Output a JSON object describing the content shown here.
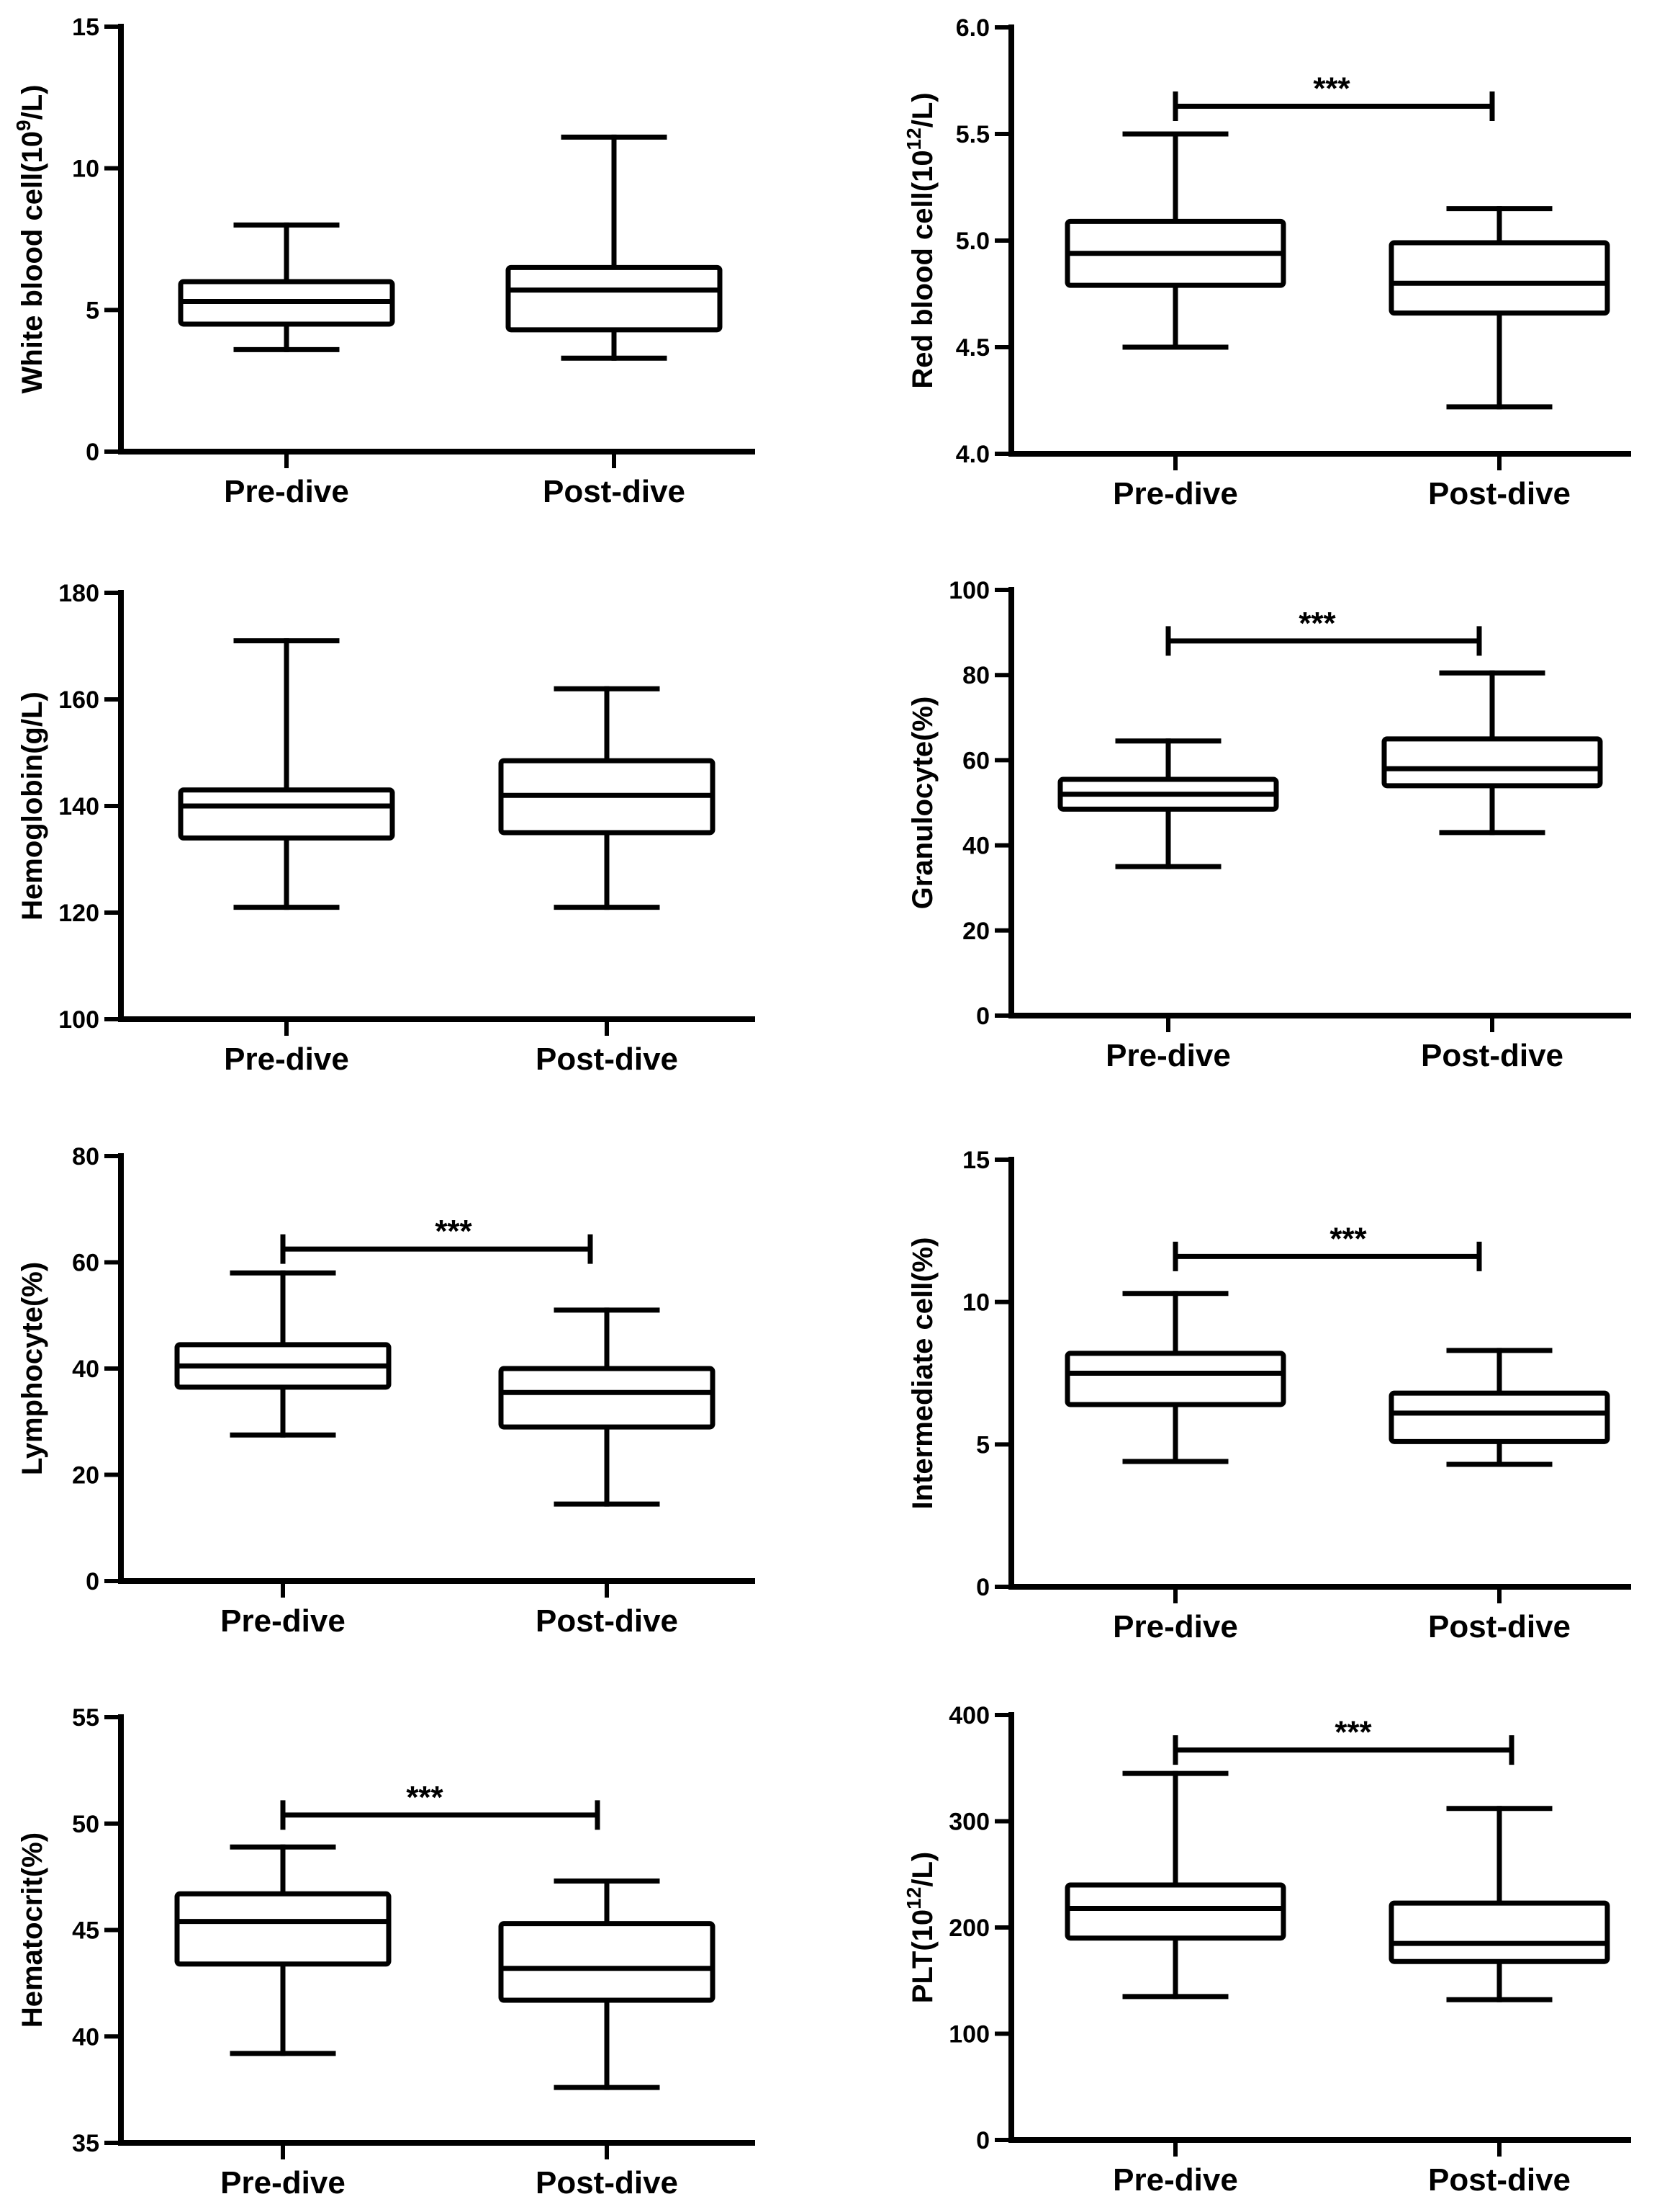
{
  "figure": {
    "description_title": ""
  },
  "chart_data": [
    {
      "type": "box",
      "ylabel": "White blood cell(10",
      "ylabel_sup": "9",
      "ylabel_tail": "/L)",
      "ylim": [
        0,
        15
      ],
      "yticks": [
        "0",
        "5",
        "10",
        "15"
      ],
      "categories": [
        "Pre-dive",
        "Post-dive"
      ],
      "boxes": [
        {
          "min": 3.6,
          "q1": 4.5,
          "median": 5.3,
          "q3": 6.0,
          "max": 8.0
        },
        {
          "min": 3.3,
          "q1": 4.3,
          "median": 5.7,
          "q3": 6.5,
          "max": 11.1
        }
      ],
      "significance": null
    },
    {
      "type": "box",
      "ylabel": "Red blood cell(10",
      "ylabel_sup": "12",
      "ylabel_tail": "/L)",
      "ylim": [
        4.0,
        6.0
      ],
      "yticks": [
        "4.0",
        "4.5",
        "5.0",
        "5.5",
        "6.0"
      ],
      "categories": [
        "Pre-dive",
        "Post-dive"
      ],
      "boxes": [
        {
          "min": 4.5,
          "q1": 4.79,
          "median": 4.94,
          "q3": 5.09,
          "max": 5.5
        },
        {
          "min": 4.22,
          "q1": 4.66,
          "median": 4.8,
          "q3": 4.99,
          "max": 5.15
        }
      ],
      "significance": {
        "label": "***",
        "y": 5.63
      }
    },
    {
      "type": "box",
      "ylabel": "Hemoglobin(g/L)",
      "ylabel_sup": "",
      "ylabel_tail": "",
      "ylim": [
        100,
        180
      ],
      "yticks": [
        "100",
        "120",
        "140",
        "160",
        "180"
      ],
      "categories": [
        "Pre-dive",
        "Post-dive"
      ],
      "boxes": [
        {
          "min": 121,
          "q1": 134,
          "median": 140,
          "q3": 143,
          "max": 171
        },
        {
          "min": 121,
          "q1": 135,
          "median": 142,
          "q3": 148.5,
          "max": 162
        }
      ],
      "significance": null
    },
    {
      "type": "box",
      "ylabel": "Granulocyte(%)",
      "ylabel_sup": "",
      "ylabel_tail": "",
      "ylim": [
        0,
        100
      ],
      "yticks": [
        "0",
        "20",
        "40",
        "60",
        "80",
        "100"
      ],
      "categories": [
        "Pre-dive",
        "Post-dive"
      ],
      "boxes": [
        {
          "min": 35,
          "q1": 48.5,
          "median": 52,
          "q3": 55.5,
          "max": 64.5
        },
        {
          "min": 43,
          "q1": 54,
          "median": 58,
          "q3": 65,
          "max": 80.5
        }
      ],
      "significance": {
        "label": "***",
        "y": 88
      }
    },
    {
      "type": "box",
      "ylabel": "Lymphocyte(%)",
      "ylabel_sup": "",
      "ylabel_tail": "",
      "ylim": [
        0,
        80
      ],
      "yticks": [
        "0",
        "20",
        "40",
        "60",
        "80"
      ],
      "categories": [
        "Pre-dive",
        "Post-dive"
      ],
      "boxes": [
        {
          "min": 27.5,
          "q1": 36.5,
          "median": 40.5,
          "q3": 44.5,
          "max": 58
        },
        {
          "min": 14.5,
          "q1": 29,
          "median": 35.5,
          "q3": 40,
          "max": 51
        }
      ],
      "significance": {
        "label": "***",
        "y": 62.5
      }
    },
    {
      "type": "box",
      "ylabel": "Intermediate cell(%)",
      "ylabel_sup": "",
      "ylabel_tail": "",
      "ylim": [
        0,
        15
      ],
      "yticks": [
        "0",
        "5",
        "10",
        "15"
      ],
      "categories": [
        "Pre-dive",
        "Post-dive"
      ],
      "boxes": [
        {
          "min": 4.4,
          "q1": 6.4,
          "median": 7.5,
          "q3": 8.2,
          "max": 10.3
        },
        {
          "min": 4.3,
          "q1": 5.1,
          "median": 6.1,
          "q3": 6.8,
          "max": 8.3
        }
      ],
      "significance": {
        "label": "***",
        "y": 11.6
      }
    },
    {
      "type": "box",
      "ylabel": "Hematocrit(%)",
      "ylabel_sup": "",
      "ylabel_tail": "",
      "ylim": [
        35,
        55
      ],
      "yticks": [
        "35",
        "40",
        "45",
        "50",
        "55"
      ],
      "categories": [
        "Pre-dive",
        "Post-dive"
      ],
      "boxes": [
        {
          "min": 39.2,
          "q1": 43.4,
          "median": 45.4,
          "q3": 46.7,
          "max": 48.9
        },
        {
          "min": 37.6,
          "q1": 41.7,
          "median": 43.2,
          "q3": 45.3,
          "max": 47.3
        }
      ],
      "significance": {
        "label": "***",
        "y": 50.4
      }
    },
    {
      "type": "box",
      "ylabel": "PLT(10",
      "ylabel_sup": "12",
      "ylabel_tail": "/L)",
      "ylim": [
        0,
        400
      ],
      "yticks": [
        "0",
        "100",
        "200",
        "300",
        "400"
      ],
      "categories": [
        "Pre-dive",
        "Post-dive"
      ],
      "boxes": [
        {
          "min": 135,
          "q1": 190,
          "median": 218,
          "q3": 240,
          "max": 345
        },
        {
          "min": 132,
          "q1": 168,
          "median": 185,
          "q3": 223,
          "max": 312
        }
      ],
      "significance": {
        "label": "***",
        "y": 367
      }
    }
  ]
}
